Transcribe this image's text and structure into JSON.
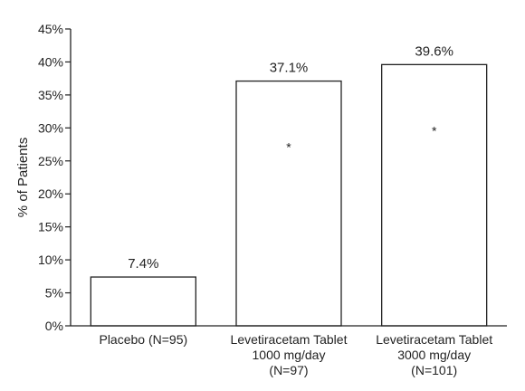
{
  "chart_data": {
    "type": "bar",
    "ylabel": "% of Patients",
    "ylim": [
      0,
      45
    ],
    "yticks": [
      "0%",
      "5%",
      "10%",
      "15%",
      "20%",
      "25%",
      "30%",
      "35%",
      "40%",
      "45%"
    ],
    "categories": [
      [
        "Placebo (N=95)"
      ],
      [
        "Levetiracetam Tablet",
        "1000 mg/day",
        "(N=97)"
      ],
      [
        "Levetiracetam Tablet",
        "3000 mg/day",
        "(N=101)"
      ]
    ],
    "values": [
      7.4,
      37.1,
      39.6
    ],
    "data_labels": [
      "7.4%",
      "37.1%",
      "39.6%"
    ],
    "annotations": [
      "",
      "*",
      "*"
    ],
    "grid": false,
    "bar_fill": "#ffffff",
    "bar_stroke": "#222222"
  }
}
